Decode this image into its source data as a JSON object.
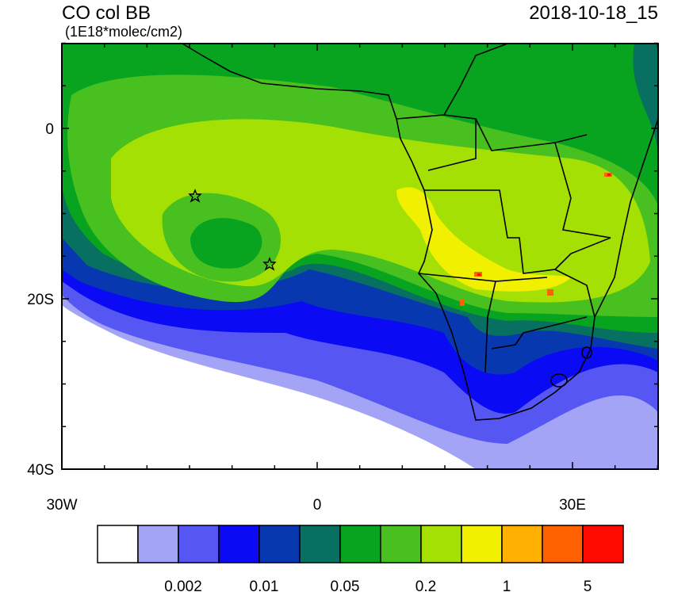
{
  "header": {
    "title": "CO col BB",
    "units": "(1E18*molec/cm2)",
    "date": "2018-10-18_15"
  },
  "map": {
    "lat_labels": [
      "0",
      "20S",
      "40S"
    ],
    "lon_labels": [
      "30W",
      "0",
      "30E"
    ]
  },
  "colorbar": {
    "colors": [
      "#ffffff",
      "#a4a4f6",
      "#5656f2",
      "#0a0af4",
      "#0838b0",
      "#087060",
      "#08a420",
      "#48c020",
      "#a4e004",
      "#f0f000",
      "#ffb000",
      "#ff6000",
      "#ff0a00"
    ],
    "labels": [
      0.002,
      0.01,
      0.05,
      0.2,
      1,
      5
    ]
  }
}
